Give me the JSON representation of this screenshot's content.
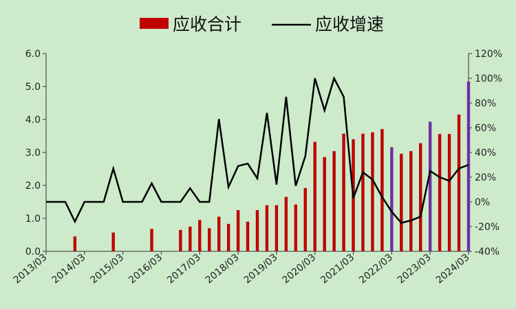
{
  "chart_data": {
    "type": "bar",
    "legend": {
      "placement": "top-center"
    },
    "series": [
      {
        "name": "应收合计",
        "kind": "bar",
        "axis": "left",
        "color": "#c00000",
        "highlight_color": "#7030a0"
      },
      {
        "name": "应收增速",
        "kind": "line",
        "axis": "right",
        "color": "#000000"
      }
    ],
    "x_tick_labels": [
      "2013/03",
      "2014/03",
      "2015/03",
      "2016/03",
      "2017/03",
      "2018/03",
      "2019/03",
      "2020/03",
      "2021/03",
      "2022/03",
      "2023/03",
      "2024/03"
    ],
    "left_axis": {
      "min": 0,
      "max": 6,
      "ticks": [
        "0.0",
        "1.0",
        "2.0",
        "3.0",
        "4.0",
        "5.0",
        "6.0"
      ]
    },
    "right_axis": {
      "min": -40,
      "max": 120,
      "ticks": [
        "-40%",
        "-20%",
        "0%",
        "20%",
        "40%",
        "60%",
        "80%",
        "100%",
        "120%"
      ]
    },
    "grid": false,
    "bars": [
      {
        "q": 0,
        "value": 0
      },
      {
        "q": 1,
        "value": 0
      },
      {
        "q": 2,
        "value": 0
      },
      {
        "q": 3,
        "value": 0.45
      },
      {
        "q": 4,
        "value": 0
      },
      {
        "q": 5,
        "value": 0
      },
      {
        "q": 6,
        "value": 0
      },
      {
        "q": 7,
        "value": 0.57
      },
      {
        "q": 8,
        "value": 0
      },
      {
        "q": 9,
        "value": 0
      },
      {
        "q": 10,
        "value": 0
      },
      {
        "q": 11,
        "value": 0.68
      },
      {
        "q": 12,
        "value": 0
      },
      {
        "q": 13,
        "value": 0
      },
      {
        "q": 14,
        "value": 0.65
      },
      {
        "q": 15,
        "value": 0.75
      },
      {
        "q": 16,
        "value": 0.95
      },
      {
        "q": 17,
        "value": 0.7
      },
      {
        "q": 18,
        "value": 1.05
      },
      {
        "q": 19,
        "value": 0.83
      },
      {
        "q": 20,
        "value": 1.25
      },
      {
        "q": 21,
        "value": 0.9
      },
      {
        "q": 22,
        "value": 1.25
      },
      {
        "q": 23,
        "value": 1.4
      },
      {
        "q": 24,
        "value": 1.4
      },
      {
        "q": 25,
        "value": 1.65
      },
      {
        "q": 26,
        "value": 1.42
      },
      {
        "q": 27,
        "value": 1.92
      },
      {
        "q": 28,
        "value": 3.32
      },
      {
        "q": 29,
        "value": 2.86
      },
      {
        "q": 30,
        "value": 3.04
      },
      {
        "q": 31,
        "value": 3.57
      },
      {
        "q": 32,
        "value": 3.4
      },
      {
        "q": 33,
        "value": 3.57
      },
      {
        "q": 34,
        "value": 3.61
      },
      {
        "q": 35,
        "value": 3.71
      },
      {
        "q": 36,
        "value": 3.16,
        "highlight": true
      },
      {
        "q": 37,
        "value": 2.96
      },
      {
        "q": 38,
        "value": 3.04
      },
      {
        "q": 39,
        "value": 3.28
      },
      {
        "q": 40,
        "value": 3.93,
        "highlight": true
      },
      {
        "q": 41,
        "value": 3.56
      },
      {
        "q": 42,
        "value": 3.56
      },
      {
        "q": 43,
        "value": 4.15
      },
      {
        "q": 44,
        "value": 5.15,
        "highlight": true
      }
    ],
    "growth_pct": [
      0,
      0,
      0,
      -16,
      0,
      0,
      0,
      27,
      0,
      0,
      0,
      15,
      0,
      0,
      0,
      11,
      0,
      0,
      67,
      12,
      29,
      31,
      19,
      72,
      14,
      85,
      13,
      37,
      100,
      74,
      100,
      85,
      3,
      24,
      18,
      4,
      -8,
      -17,
      -15,
      -12,
      25,
      20,
      17,
      27,
      30
    ]
  }
}
